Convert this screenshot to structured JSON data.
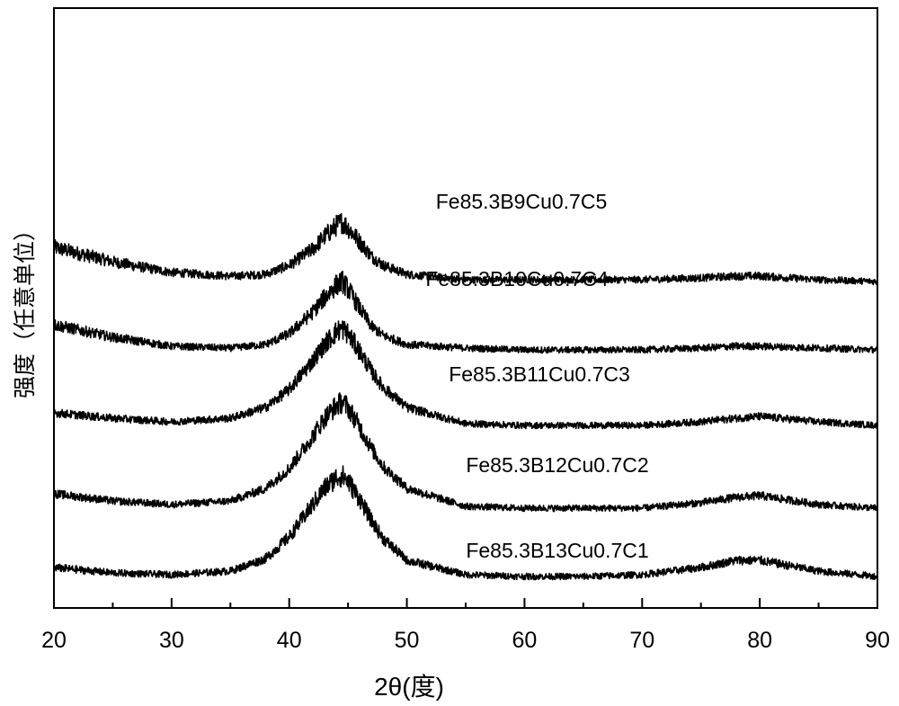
{
  "chart_data": {
    "type": "line",
    "xlabel": "2θ(度)",
    "ylabel": "强度（任意单位）",
    "xlim": [
      20,
      90
    ],
    "xticks": [
      20,
      30,
      40,
      50,
      60,
      70,
      80,
      90
    ],
    "x_minor_ticks": [
      25,
      35,
      45,
      55,
      65,
      75,
      85
    ],
    "y_ticks_shown": false,
    "grid": false,
    "legend": "none (series labeled directly above each curve)",
    "line_color": "#000000",
    "peak_position_2theta": 44.5,
    "series": [
      {
        "name": "Fe85.3B9Cu0.7C5",
        "x": [
          20,
          25,
          30,
          35,
          38,
          40,
          42,
          43,
          44,
          44.5,
          45,
          46,
          47,
          48,
          50,
          55,
          60,
          65,
          70,
          75,
          78,
          80,
          85,
          90
        ],
        "y": [
          1.85,
          1.77,
          1.71,
          1.69,
          1.7,
          1.75,
          1.84,
          1.91,
          1.97,
          1.99,
          1.96,
          1.88,
          1.8,
          1.75,
          1.7,
          1.67,
          1.67,
          1.67,
          1.67,
          1.68,
          1.69,
          1.69,
          1.67,
          1.66
        ]
      },
      {
        "name": "Fe85.3B10Cu0.7C4",
        "x": [
          20,
          25,
          30,
          35,
          38,
          40,
          42,
          43,
          44,
          44.5,
          45,
          46,
          47,
          48,
          50,
          55,
          60,
          65,
          70,
          75,
          78,
          80,
          85,
          90
        ],
        "y": [
          1.42,
          1.35,
          1.3,
          1.29,
          1.31,
          1.37,
          1.49,
          1.57,
          1.64,
          1.66,
          1.62,
          1.51,
          1.41,
          1.36,
          1.31,
          1.29,
          1.28,
          1.28,
          1.28,
          1.29,
          1.3,
          1.3,
          1.29,
          1.28
        ]
      },
      {
        "name": "Fe85.3B11Cu0.7C3",
        "x": [
          20,
          25,
          30,
          35,
          38,
          40,
          42,
          43,
          44,
          44.5,
          45,
          46,
          47,
          48,
          50,
          55,
          60,
          65,
          70,
          75,
          78,
          80,
          85,
          90
        ],
        "y": [
          0.93,
          0.9,
          0.88,
          0.9,
          0.96,
          1.06,
          1.22,
          1.31,
          1.38,
          1.4,
          1.37,
          1.27,
          1.16,
          1.07,
          0.96,
          0.87,
          0.86,
          0.86,
          0.86,
          0.88,
          0.9,
          0.91,
          0.88,
          0.86
        ]
      },
      {
        "name": "Fe85.3B12Cu0.7C2",
        "x": [
          20,
          25,
          30,
          35,
          38,
          40,
          42,
          43,
          44,
          44.5,
          45,
          46,
          47,
          48,
          50,
          55,
          60,
          65,
          70,
          75,
          78,
          80,
          85,
          90
        ],
        "y": [
          0.48,
          0.44,
          0.42,
          0.44,
          0.51,
          0.62,
          0.8,
          0.9,
          0.97,
          0.99,
          0.96,
          0.85,
          0.73,
          0.63,
          0.51,
          0.41,
          0.4,
          0.4,
          0.4,
          0.43,
          0.46,
          0.47,
          0.42,
          0.4
        ]
      },
      {
        "name": "Fe85.3B13Cu0.7C1",
        "x": [
          20,
          25,
          30,
          35,
          38,
          40,
          42,
          43,
          44,
          44.5,
          45,
          46,
          47,
          48,
          50,
          55,
          60,
          65,
          70,
          75,
          78,
          80,
          85,
          90
        ],
        "y": [
          0.07,
          0.04,
          0.03,
          0.05,
          0.12,
          0.24,
          0.42,
          0.51,
          0.57,
          0.58,
          0.55,
          0.45,
          0.33,
          0.23,
          0.11,
          0.03,
          0.02,
          0.02,
          0.03,
          0.07,
          0.11,
          0.11,
          0.05,
          0.02
        ]
      }
    ]
  }
}
